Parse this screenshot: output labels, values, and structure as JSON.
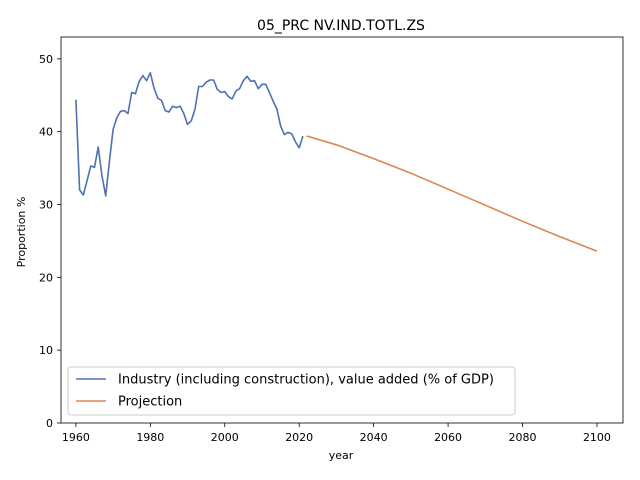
{
  "chart_data": {
    "type": "line",
    "title": "05_PRC NV.IND.TOTL.ZS",
    "xlabel": "year",
    "ylabel": "Proportion %",
    "xlim": [
      1956,
      2107
    ],
    "ylim": [
      0,
      53
    ],
    "xticks": [
      1960,
      1980,
      2000,
      2020,
      2040,
      2060,
      2080,
      2100
    ],
    "yticks": [
      0,
      10,
      20,
      30,
      40,
      50
    ],
    "grid": false,
    "legend_position": "lower-left",
    "series": [
      {
        "name": "Industry (including construction), value added (% of GDP)",
        "color": "#4c72b0",
        "x": [
          1960,
          1961,
          1962,
          1963,
          1964,
          1965,
          1966,
          1967,
          1968,
          1969,
          1970,
          1971,
          1972,
          1973,
          1974,
          1975,
          1976,
          1977,
          1978,
          1979,
          1980,
          1981,
          1982,
          1983,
          1984,
          1985,
          1986,
          1987,
          1988,
          1989,
          1990,
          1991,
          1992,
          1993,
          1994,
          1995,
          1996,
          1997,
          1998,
          1999,
          2000,
          2001,
          2002,
          2003,
          2004,
          2005,
          2006,
          2007,
          2008,
          2009,
          2010,
          2011,
          2012,
          2013,
          2014,
          2015,
          2016,
          2017,
          2018,
          2019,
          2020,
          2021
        ],
        "y": [
          44.4,
          32.0,
          31.3,
          33.3,
          35.3,
          35.1,
          37.9,
          34.0,
          31.2,
          35.9,
          40.3,
          41.9,
          42.8,
          42.9,
          42.5,
          45.4,
          45.2,
          46.9,
          47.7,
          47.0,
          48.1,
          46.0,
          44.6,
          44.3,
          42.9,
          42.7,
          43.5,
          43.3,
          43.5,
          42.5,
          41.0,
          41.5,
          43.1,
          46.2,
          46.2,
          46.8,
          47.1,
          47.1,
          45.8,
          45.4,
          45.5,
          44.8,
          44.5,
          45.6,
          45.9,
          47.0,
          47.6,
          46.9,
          47.0,
          45.9,
          46.5,
          46.5,
          45.4,
          44.2,
          43.1,
          40.8,
          39.6,
          39.9,
          39.7,
          38.6,
          37.8,
          39.4
        ]
      },
      {
        "name": "Projection",
        "color": "#dd8452",
        "x": [
          2022,
          2030,
          2040,
          2050,
          2060,
          2070,
          2080,
          2090,
          2100
        ],
        "y": [
          39.4,
          38.2,
          36.3,
          34.3,
          32.1,
          29.9,
          27.7,
          25.6,
          23.6
        ]
      }
    ]
  }
}
